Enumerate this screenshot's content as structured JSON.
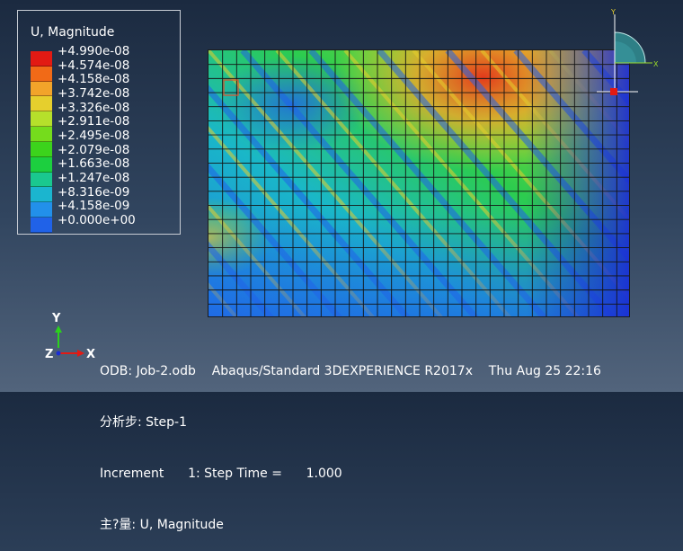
{
  "legend": {
    "title": "U, Magnitude",
    "labels": [
      "+4.990e-08",
      "+4.574e-08",
      "+4.158e-08",
      "+3.742e-08",
      "+3.326e-08",
      "+2.911e-08",
      "+2.495e-08",
      "+2.079e-08",
      "+1.663e-08",
      "+1.247e-08",
      "+8.316e-09",
      "+4.158e-09",
      "+0.000e+00"
    ],
    "colors": [
      "#e21a13",
      "#f16a17",
      "#f2a42a",
      "#e6cf2d",
      "#b6e02b",
      "#75dc1c",
      "#3cd31c",
      "#1ccf3f",
      "#1ac88f",
      "#1bb5cf",
      "#2290ea",
      "#2062e8",
      "#1a2dd6"
    ]
  },
  "triad": {
    "y_label": "Y",
    "x_label": "X"
  },
  "small_axes": {
    "y_label": "Y",
    "z_label": "Z",
    "x_label": "X"
  },
  "info": {
    "line1_odb": "ODB: Job-2.odb",
    "line1_solver": "Abaqus/Standard 3DEXPERIENCE R2017x",
    "line1_date": "Thu Aug 25 22:16",
    "line2": "分析步: Step-1",
    "line3": "Increment      1: Step Time =      1.000",
    "line4": "主?量: U, Magnitude"
  }
}
